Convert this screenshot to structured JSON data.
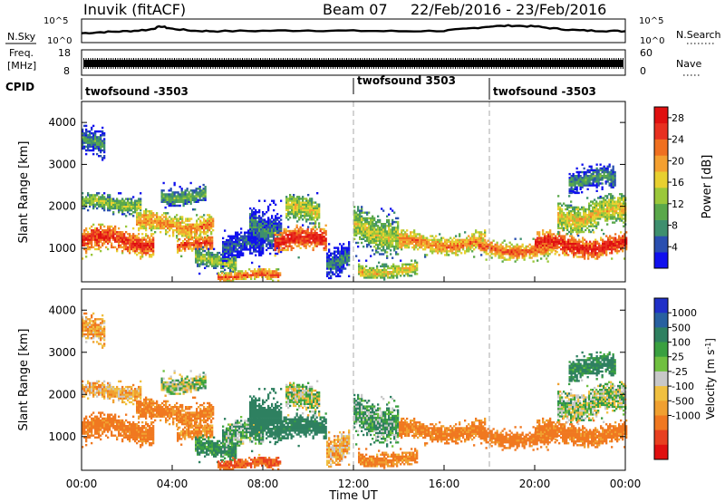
{
  "header": {
    "station": "Inuvik (fitACF)",
    "beam": "Beam 07",
    "dates": "22/Feb/2016 - 23/Feb/2016"
  },
  "nsky_panel": {
    "left_label": "N.Sky",
    "right_label": "N.Search",
    "left_ticks": [
      "10^5",
      "10^0"
    ],
    "right_ticks": [
      "10^5",
      "10^0"
    ]
  },
  "freq_panel": {
    "left_label_1": "Freq.",
    "left_label_2": "[MHz]",
    "right_label": "Nave",
    "left_ticks": [
      "18",
      "8"
    ],
    "right_ticks": [
      "60",
      "0"
    ]
  },
  "cpid": {
    "label": "CPID",
    "segments": [
      "twofsound -3503",
      "twofsound 3503",
      "twofsound -3503"
    ]
  },
  "axes": {
    "ylabel": "Slant Range [km]",
    "xlabel": "Time UT",
    "y_ticks": [
      "1000",
      "2000",
      "3000",
      "4000"
    ],
    "x_ticks": [
      "00:00",
      "04:00",
      "08:00",
      "12:00",
      "16:00",
      "20:00",
      "00:00"
    ]
  },
  "power_colorbar": {
    "label": "Power [dB]",
    "ticks": [
      "4",
      "8",
      "12",
      "16",
      "20",
      "24",
      "28"
    ],
    "colors": [
      "#1010ee",
      "#2a4fb0",
      "#3e8f6e",
      "#5aa84a",
      "#9bc83a",
      "#e8d030",
      "#f4a030",
      "#f07020",
      "#e83020",
      "#e01010"
    ]
  },
  "velocity_colorbar": {
    "label": "Velocity [m s",
    "label_sup": "-1",
    "label_end": "]",
    "ticks": [
      "1000",
      "500",
      "100",
      "25",
      "-25",
      "-100",
      "-500",
      "-1000"
    ],
    "colors": [
      "#2030c8",
      "#2860a0",
      "#2e8060",
      "#3aa040",
      "#70c040",
      "#c8c8c8",
      "#f0c040",
      "#f0a030",
      "#f07820",
      "#e84020",
      "#e01010"
    ]
  },
  "chart_data": {
    "type": "heatmap",
    "title": "Inuvik (fitACF)   Beam 07   22/Feb/2016 - 23/Feb/2016",
    "xlabel": "Time UT",
    "ylabel": "Slant Range [km]",
    "x_ticks": [
      "00:00",
      "04:00",
      "08:00",
      "12:00",
      "16:00",
      "20:00",
      "00:00"
    ],
    "xlim_hours": [
      0,
      24
    ],
    "ylim_km": [
      200,
      4500
    ],
    "dashed_vlines_hours": [
      12,
      18
    ],
    "nsky_trace": {
      "hours": [
        0,
        1,
        2,
        3,
        3.5,
        4,
        5,
        6,
        8,
        10,
        12,
        14,
        16,
        17,
        18,
        19,
        20,
        21,
        22,
        23,
        24
      ],
      "log10_level": [
        1.9,
        2.2,
        2.4,
        2.8,
        3.6,
        3.0,
        2.5,
        2.4,
        2.5,
        2.6,
        2.5,
        2.4,
        2.5,
        3.0,
        3.6,
        3.8,
        3.6,
        3.0,
        2.6,
        2.5,
        2.4
      ]
    },
    "scatter_regions": [
      {
        "start_h": 0.0,
        "end_h": 3.2,
        "center_km": 1150,
        "halfwidth_km": 320,
        "power_db": 27,
        "velocity": -150
      },
      {
        "start_h": 0.0,
        "end_h": 2.6,
        "center_km": 2050,
        "halfwidth_km": 230,
        "power_db": 14,
        "velocity": -60
      },
      {
        "start_h": 0.0,
        "end_h": 1.0,
        "center_km": 3500,
        "halfwidth_km": 350,
        "power_db": 9,
        "velocity": -80
      },
      {
        "start_h": 2.4,
        "end_h": 5.8,
        "center_km": 1550,
        "halfwidth_km": 280,
        "power_db": 22,
        "velocity": -130
      },
      {
        "start_h": 3.5,
        "end_h": 5.5,
        "center_km": 2250,
        "halfwidth_km": 230,
        "power_db": 12,
        "velocity": 5
      },
      {
        "start_h": 4.2,
        "end_h": 5.8,
        "center_km": 1050,
        "halfwidth_km": 200,
        "power_db": 26,
        "velocity": -120
      },
      {
        "start_h": 5.0,
        "end_h": 6.8,
        "center_km": 700,
        "halfwidth_km": 250,
        "power_db": 14,
        "velocity": 80
      },
      {
        "start_h": 6.0,
        "end_h": 8.8,
        "center_km": 330,
        "halfwidth_km": 130,
        "power_db": 25,
        "velocity": -300
      },
      {
        "start_h": 6.2,
        "end_h": 8.0,
        "center_km": 1000,
        "halfwidth_km": 350,
        "power_db": 6,
        "velocity": 40
      },
      {
        "start_h": 7.4,
        "end_h": 8.8,
        "center_km": 1500,
        "halfwidth_km": 500,
        "power_db": 8,
        "velocity": 150
      },
      {
        "start_h": 8.5,
        "end_h": 10.8,
        "center_km": 1150,
        "halfwidth_km": 300,
        "power_db": 28,
        "velocity": 120
      },
      {
        "start_h": 9.0,
        "end_h": 10.5,
        "center_km": 1850,
        "halfwidth_km": 350,
        "power_db": 17,
        "velocity": 0
      },
      {
        "start_h": 10.8,
        "end_h": 11.8,
        "center_km": 700,
        "halfwidth_km": 400,
        "power_db": 8,
        "velocity": -60
      },
      {
        "start_h": 12.0,
        "end_h": 14.0,
        "center_km": 1400,
        "halfwidth_km": 500,
        "power_db": 16,
        "velocity": 50
      },
      {
        "start_h": 12.2,
        "end_h": 14.8,
        "center_km": 450,
        "halfwidth_km": 200,
        "power_db": 18,
        "velocity": -120
      },
      {
        "start_h": 14.0,
        "end_h": 17.8,
        "center_km": 1100,
        "halfwidth_km": 250,
        "power_db": 22,
        "velocity": -130
      },
      {
        "start_h": 17.5,
        "end_h": 21.0,
        "center_km": 950,
        "halfwidth_km": 220,
        "power_db": 24,
        "velocity": -160
      },
      {
        "start_h": 20.0,
        "end_h": 24.0,
        "center_km": 1050,
        "halfwidth_km": 280,
        "power_db": 28,
        "velocity": -140
      },
      {
        "start_h": 21.0,
        "end_h": 24.0,
        "center_km": 1800,
        "halfwidth_km": 400,
        "power_db": 18,
        "velocity": 5
      },
      {
        "start_h": 21.5,
        "end_h": 23.5,
        "center_km": 2600,
        "halfwidth_km": 300,
        "power_db": 10,
        "velocity": 90
      }
    ]
  }
}
